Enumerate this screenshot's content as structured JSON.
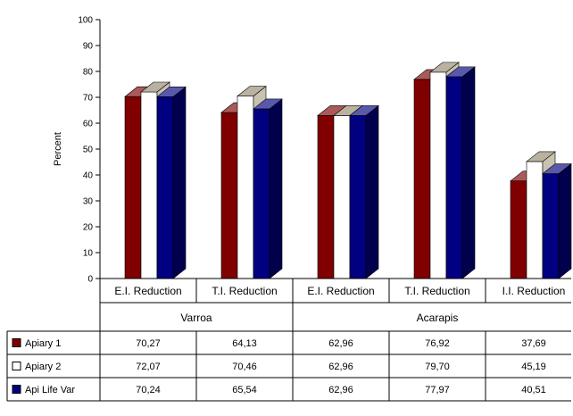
{
  "chart_data": {
    "type": "bar",
    "ylabel": "Percent",
    "ylim": [
      0,
      100
    ],
    "yticks": [
      0,
      10,
      20,
      30,
      40,
      50,
      60,
      70,
      80,
      90,
      100
    ],
    "categories": [
      "E.I. Reduction",
      "T.I. Reduction",
      "E.I. Reduction",
      "T.I. Reduction",
      "I.I. Reduction"
    ],
    "groups": [
      {
        "label": "Varroa",
        "span": 2
      },
      {
        "label": "Acarapis",
        "span": 3
      }
    ],
    "series": [
      {
        "name": "Apiary 1",
        "color": "#800000",
        "labels": [
          "70,27",
          "64,13",
          "62,96",
          "76,92",
          "37,69"
        ],
        "values": [
          70.27,
          64.13,
          62.96,
          76.92,
          37.69
        ]
      },
      {
        "name": "Apiary 2",
        "color": "#ffffff",
        "labels": [
          "72,07",
          "70,46",
          "62,96",
          "79,70",
          "45,19"
        ],
        "values": [
          72.07,
          70.46,
          62.96,
          79.7,
          45.19
        ]
      },
      {
        "name": "Api Life Var",
        "color": "#000080",
        "labels": [
          "70,24",
          "65,54",
          "62,96",
          "77,97",
          "40,51"
        ],
        "values": [
          70.24,
          65.54,
          62.96,
          77.97,
          40.51
        ]
      }
    ],
    "grid": false,
    "bar_style": "3d",
    "legend": "data-table"
  }
}
